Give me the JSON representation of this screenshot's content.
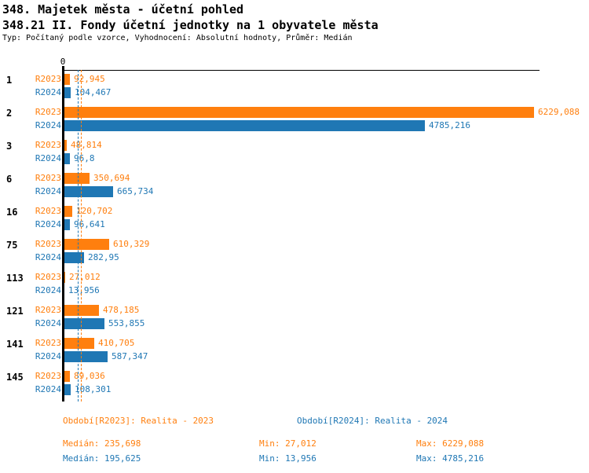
{
  "header": {
    "title": "348. Majetek města - účetní pohled",
    "subtitle": "348.21 II. Fondy účetní jednotky na 1 obyvatele města",
    "meta": "Typ: Počítaný podle vzorce, Vyhodnocení: Absolutní hodnoty, Průměr: Medián"
  },
  "colors": {
    "r2023": "#FF7F0E",
    "r2024": "#1F77B4",
    "axis": "#000000"
  },
  "axis": {
    "zero_label": "0"
  },
  "chart_data": {
    "type": "bar",
    "orientation": "horizontal",
    "title": "348. Majetek města - účetní pohled",
    "subtitle": "348.21 II. Fondy účetní jednotky na 1 obyvatele města",
    "categories": [
      "1",
      "2",
      "3",
      "6",
      "16",
      "75",
      "113",
      "121",
      "141",
      "145"
    ],
    "xlim": [
      0,
      6229.088
    ],
    "grid": false,
    "series": [
      {
        "name": "R2023",
        "color": "#FF7F0E",
        "values": [
          92.945,
          6229.088,
          48.814,
          350.694,
          120.702,
          610.329,
          27.012,
          478.185,
          410.705,
          89.036
        ],
        "value_labels": [
          "92,945",
          "6229,088",
          "48,814",
          "350,694",
          "120,702",
          "610,329",
          "27,012",
          "478,185",
          "410,705",
          "89,036"
        ],
        "median": 235.698,
        "period_label": "Období[R2023]: Realita - 2023",
        "stats": {
          "median": "Medián: 235,698",
          "min": "Min: 27,012",
          "max": "Max: 6229,088"
        }
      },
      {
        "name": "R2024",
        "color": "#1F77B4",
        "values": [
          104.467,
          4785.216,
          96.8,
          665.734,
          96.641,
          282.95,
          13.956,
          553.855,
          587.347,
          108.301
        ],
        "value_labels": [
          "104,467",
          "4785,216",
          "96,8",
          "665,734",
          "96,641",
          "282,95",
          "13,956",
          "553,855",
          "587,347",
          "108,301"
        ],
        "median": 195.625,
        "period_label": "Období[R2024]: Realita - 2024",
        "stats": {
          "median": "Medián: 195,625",
          "min": "Min: 13,956",
          "max": "Max: 4785,216"
        }
      }
    ],
    "median_lines": [
      {
        "series": "R2023",
        "value": 235.698,
        "color": "#FF7F0E"
      },
      {
        "series": "R2024",
        "value": 195.625,
        "color": "#1F77B4"
      }
    ]
  }
}
